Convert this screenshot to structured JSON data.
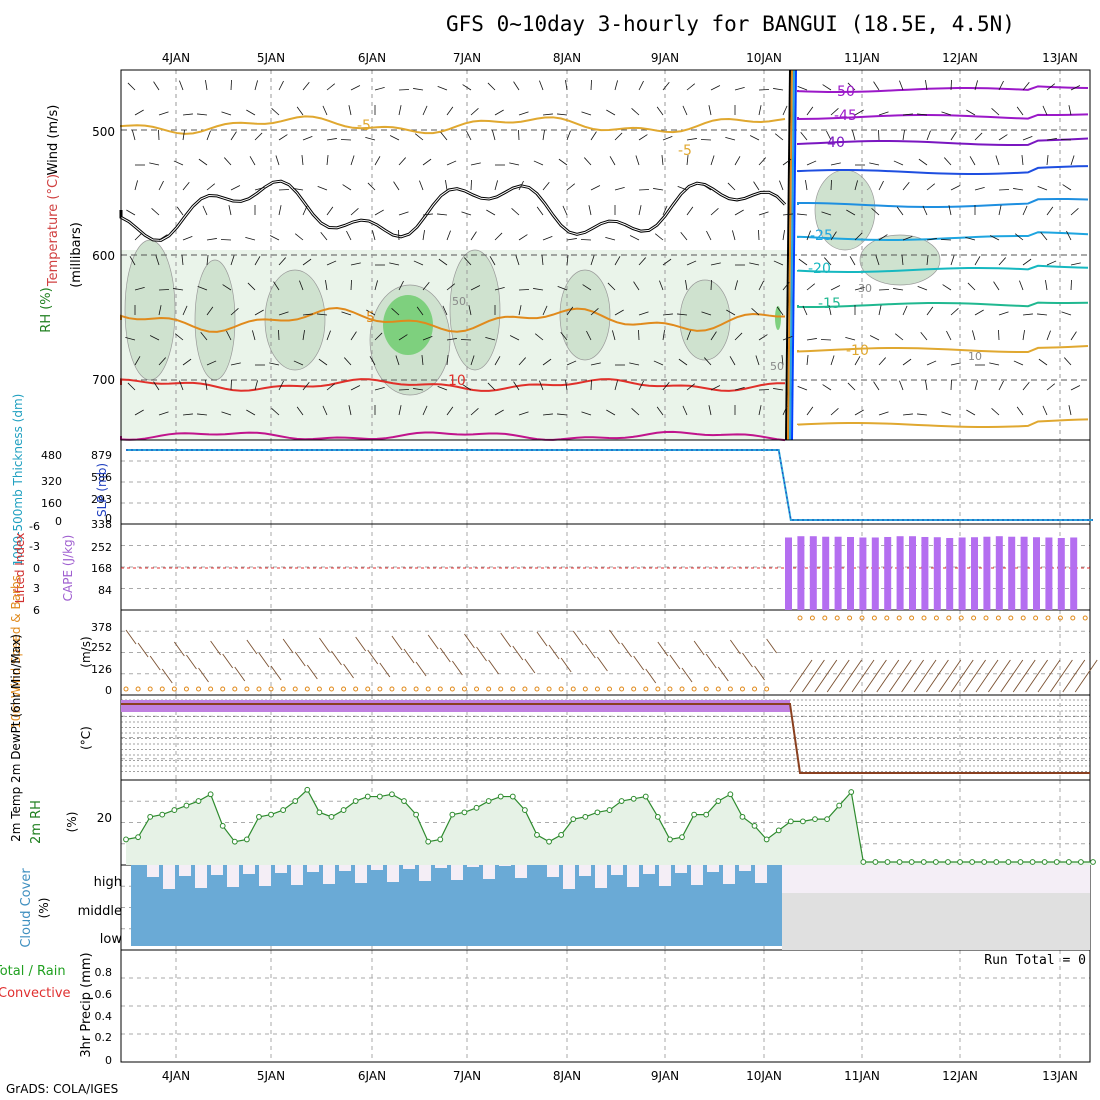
{
  "title": "GFS 0~10day 3-hourly for BANGUI (18.5E, 4.5N)",
  "credit": "GrADS: COLA/IGES",
  "dates": [
    "4JAN",
    "5JAN",
    "6JAN",
    "7JAN",
    "8JAN",
    "9JAN",
    "10JAN",
    "11JAN",
    "12JAN",
    "13JAN"
  ],
  "panels": {
    "upper": {
      "ylabel_wind": "Wind (m/s)",
      "ylabel_temp": "Temperature (°C)",
      "ylabel_rh": "RH (%)",
      "ylabel_units": "(millibars)",
      "yticks": [
        "500",
        "600",
        "700"
      ],
      "contour_labels": [
        "-5",
        "-5",
        "5",
        "10",
        "-50",
        "-45",
        "-40",
        "-25",
        "-20",
        "-15",
        "-10",
        "50",
        "50",
        "30",
        "10"
      ]
    },
    "slp": {
      "ylabel_thick": "1000-500mb Thickness (dm)",
      "ylabel_slp": "SLP (mb)",
      "yticks_left": [
        "480",
        "320",
        "160",
        "0"
      ],
      "yticks_right": [
        "879",
        "586",
        "293",
        "0"
      ]
    },
    "cape": {
      "ylabel_li": "Lifted Index",
      "ylabel_cape": "CAPE (J/kg)",
      "yticks_left": [
        "-6",
        "-3",
        "0",
        "3",
        "6"
      ],
      "yticks_right": [
        "338",
        "252",
        "168",
        "84"
      ]
    },
    "wind10": {
      "ylabel": "10m Wind Speed & Barbs",
      "units": "(m/s)",
      "yticks": [
        "378",
        "252",
        "126",
        "0"
      ]
    },
    "temp2m": {
      "ylabel": "2m Temp 2m DewPt (6hr Min/Max)",
      "units": "(°C)"
    },
    "rh2m": {
      "ylabel": "2m RH",
      "units": "(%)",
      "yticks": [
        "20"
      ]
    },
    "cloud": {
      "ylabel": "Cloud Cover",
      "units": "(%)",
      "levels": [
        "high",
        "middle",
        "low"
      ]
    },
    "precip": {
      "ylabel_a": "Total / Rain",
      "ylabel_b": "Convective",
      "ylabel_c": "3hr Precip (mm)",
      "yticks": [
        "0.8",
        "0.6",
        "0.4",
        "0.2",
        "0"
      ],
      "run_total": "Run Total = 0"
    }
  },
  "colors": {
    "rh_fill": "#7ed07e",
    "temp_warm": "#e0302a",
    "temp_cool": "#e08a1c",
    "thickness": "#2aa5d8",
    "cape": "#b46ef0",
    "cloud": "#6aaad6",
    "rh2m": "#2e8b2e"
  },
  "chart_data": [
    {
      "type": "line",
      "title": "1000-500mb Thickness / SLP",
      "series": [
        {
          "name": "SLP (mb)",
          "values": [
            879,
            879,
            879,
            879,
            879,
            879,
            879,
            879,
            879,
            879,
            879,
            879,
            879,
            879,
            879,
            879,
            879,
            879,
            879,
            879,
            879,
            879,
            879,
            879,
            879,
            879,
            879,
            879,
            879,
            879,
            879,
            879,
            879,
            879,
            879,
            879,
            879,
            879,
            879,
            879,
            879,
            879,
            879,
            879,
            879,
            879,
            879,
            879,
            879,
            879,
            879,
            879,
            879,
            879,
            879,
            0,
            0,
            0,
            0,
            0,
            0,
            0,
            0,
            0,
            0,
            0,
            0,
            0,
            0,
            0,
            0,
            0,
            0,
            0,
            0,
            0,
            0,
            0,
            0,
            0,
            0
          ]
        }
      ]
    },
    {
      "type": "bar",
      "title": "CAPE (J/kg)",
      "values_after_10jan": [
        285,
        290,
        290,
        288,
        288,
        287,
        285,
        285,
        287,
        290,
        290,
        287,
        286,
        283,
        285,
        286,
        288,
        290,
        288,
        288,
        286,
        285,
        283,
        285
      ]
    },
    {
      "type": "area",
      "title": "2m RH (%)",
      "values": [
        10,
        11,
        20,
        21,
        23,
        25,
        27,
        30,
        16,
        9,
        10,
        20,
        21,
        23,
        27,
        32,
        22,
        20,
        23,
        27,
        29,
        29,
        30,
        27,
        21,
        9,
        10,
        21,
        22,
        24,
        27,
        29,
        29,
        23,
        12,
        9,
        12,
        19,
        20,
        22,
        23,
        27,
        28,
        29,
        20,
        10,
        11,
        21,
        21,
        27,
        30,
        20,
        16,
        10,
        14,
        18,
        18,
        19,
        19,
        25,
        31,
        0,
        0,
        0,
        0,
        0,
        0,
        0,
        0,
        0,
        0,
        0,
        0,
        0,
        0,
        0,
        0,
        0,
        0,
        0,
        0
      ]
    },
    {
      "type": "bar",
      "title": "3hr Precip (mm)",
      "values": [
        0
      ],
      "ylim": [
        0,
        1
      ]
    }
  ]
}
